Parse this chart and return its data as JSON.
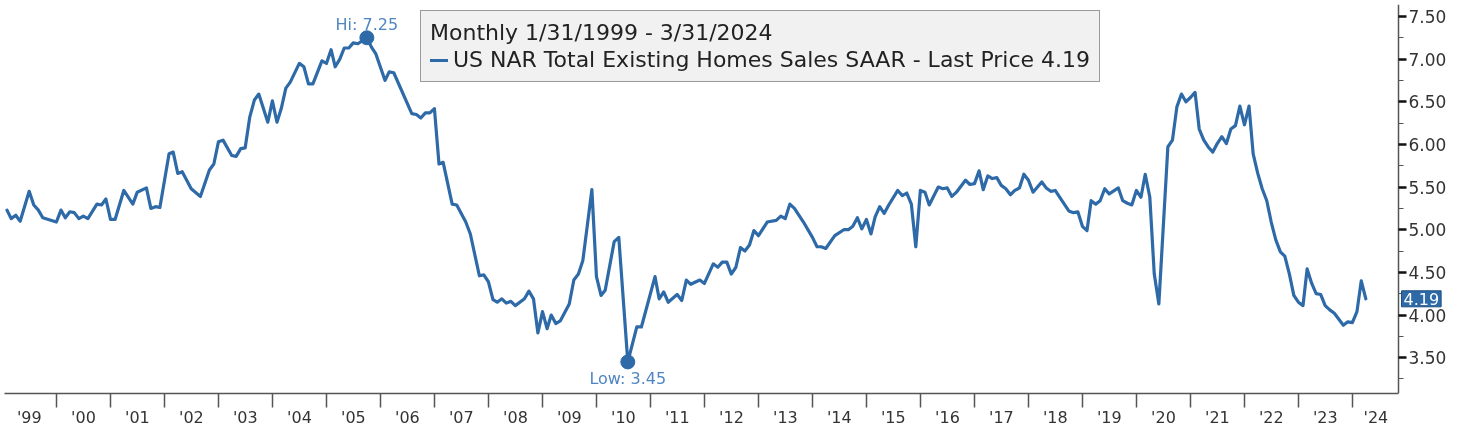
{
  "chart_data": {
    "type": "line",
    "legend_title": "Monthly 1/31/1999 - 3/31/2024",
    "x": [
      "1999-01-31",
      "1999-02-28",
      "1999-03-31",
      "1999-04-30",
      "1999-06-30",
      "1999-07-31",
      "1999-08-31",
      "1999-09-30",
      "1999-12-31",
      "2000-01-31",
      "2000-02-29",
      "2000-03-31",
      "2000-04-30",
      "2000-05-31",
      "2000-06-30",
      "2000-07-31",
      "2000-09-30",
      "2000-10-31",
      "2000-11-30",
      "2000-12-31",
      "2001-01-31",
      "2001-03-31",
      "2001-05-31",
      "2001-06-30",
      "2001-08-31",
      "2001-09-30",
      "2001-10-31",
      "2001-11-30",
      "2002-01-31",
      "2002-02-28",
      "2002-03-31",
      "2002-04-30",
      "2002-06-30",
      "2002-08-31",
      "2002-10-31",
      "2002-11-30",
      "2002-12-31",
      "2003-01-31",
      "2003-03-31",
      "2003-04-30",
      "2003-05-31",
      "2003-06-30",
      "2003-07-31",
      "2003-08-31",
      "2003-09-30",
      "2003-11-30",
      "2003-12-31",
      "2004-01-31",
      "2004-02-29",
      "2004-03-31",
      "2004-04-30",
      "2004-06-30",
      "2004-07-31",
      "2004-08-31",
      "2004-09-30",
      "2004-11-30",
      "2004-12-31",
      "2005-01-31",
      "2005-02-28",
      "2005-03-31",
      "2005-04-30",
      "2005-05-31",
      "2005-06-30",
      "2005-07-31",
      "2005-09-30",
      "2005-10-31",
      "2005-11-30",
      "2006-01-31",
      "2006-02-28",
      "2006-03-31",
      "2006-07-31",
      "2006-08-31",
      "2006-09-30",
      "2006-10-31",
      "2006-11-30",
      "2006-12-31",
      "2007-01-31",
      "2007-02-28",
      "2007-04-30",
      "2007-05-31",
      "2007-07-31",
      "2007-08-31",
      "2007-10-31",
      "2007-11-30",
      "2007-12-31",
      "2008-01-31",
      "2008-02-29",
      "2008-03-31",
      "2008-04-30",
      "2008-05-31",
      "2008-06-30",
      "2008-08-31",
      "2008-09-30",
      "2008-10-31",
      "2008-11-30",
      "2008-12-31",
      "2009-01-31",
      "2009-02-28",
      "2009-03-31",
      "2009-04-30",
      "2009-06-30",
      "2009-07-31",
      "2009-08-31",
      "2009-09-30",
      "2009-11-30",
      "2009-12-31",
      "2010-01-31",
      "2010-02-28",
      "2010-04-30",
      "2010-05-31",
      "2010-07-31",
      "2010-09-30",
      "2010-10-31",
      "2011-01-31",
      "2011-02-28",
      "2011-03-31",
      "2011-04-30",
      "2011-06-30",
      "2011-07-31",
      "2011-08-31",
      "2011-09-30",
      "2011-11-30",
      "2011-12-31",
      "2012-02-29",
      "2012-03-31",
      "2012-04-30",
      "2012-05-31",
      "2012-06-30",
      "2012-07-31",
      "2012-08-31",
      "2012-09-30",
      "2012-10-31",
      "2012-11-30",
      "2012-12-31",
      "2013-02-28",
      "2013-04-30",
      "2013-05-31",
      "2013-06-30",
      "2013-07-31",
      "2013-08-31",
      "2013-10-31",
      "2013-12-31",
      "2014-01-31",
      "2014-02-28",
      "2014-03-31",
      "2014-05-31",
      "2014-07-31",
      "2014-08-31",
      "2014-09-30",
      "2014-10-31",
      "2014-11-30",
      "2014-12-31",
      "2015-01-31",
      "2015-02-28",
      "2015-03-31",
      "2015-04-30",
      "2015-05-31",
      "2015-07-31",
      "2015-08-31",
      "2015-09-30",
      "2015-10-31",
      "2015-11-30",
      "2015-12-31",
      "2016-01-31",
      "2016-02-29",
      "2016-04-30",
      "2016-05-31",
      "2016-06-30",
      "2016-07-31",
      "2016-08-31",
      "2016-10-31",
      "2016-11-30",
      "2016-12-31",
      "2017-01-31",
      "2017-02-28",
      "2017-03-31",
      "2017-04-30",
      "2017-05-31",
      "2017-06-30",
      "2017-07-31",
      "2017-08-31",
      "2017-09-30",
      "2017-10-31",
      "2017-11-30",
      "2017-12-31",
      "2018-01-31",
      "2018-03-31",
      "2018-04-30",
      "2018-05-31",
      "2018-06-30",
      "2018-07-31",
      "2018-09-30",
      "2018-10-31",
      "2018-11-30",
      "2018-12-31",
      "2019-01-31",
      "2019-02-28",
      "2019-03-31",
      "2019-04-30",
      "2019-05-31",
      "2019-06-30",
      "2019-08-31",
      "2019-09-30",
      "2019-10-31",
      "2019-11-30",
      "2019-12-31",
      "2020-01-31",
      "2020-02-29",
      "2020-03-31",
      "2020-04-30",
      "2020-05-31",
      "2020-07-31",
      "2020-08-31",
      "2020-09-30",
      "2020-10-31",
      "2020-11-30",
      "2020-12-31",
      "2021-01-31",
      "2021-02-28",
      "2021-03-31",
      "2021-04-30",
      "2021-05-31",
      "2021-06-30",
      "2021-07-31",
      "2021-08-31",
      "2021-09-30",
      "2021-10-31",
      "2021-11-30",
      "2021-12-31",
      "2022-01-31",
      "2022-02-28",
      "2022-03-31",
      "2022-04-30",
      "2022-05-31",
      "2022-06-30",
      "2022-07-31",
      "2022-08-31",
      "2022-09-30",
      "2022-10-31",
      "2022-11-30",
      "2022-12-31",
      "2023-01-31",
      "2023-02-28",
      "2023-03-31",
      "2023-04-30",
      "2023-05-31",
      "2023-06-30",
      "2023-07-31",
      "2023-08-31",
      "2023-10-31",
      "2023-11-30",
      "2023-12-31",
      "2024-01-31",
      "2024-02-29",
      "2024-03-31"
    ],
    "series": [
      {
        "name": "US NAR Total Existing Homes Sales SAAR - Last Price 4.19",
        "color": "#2e6aa8",
        "values": [
          5.23,
          5.13,
          5.17,
          5.1,
          5.45,
          5.29,
          5.23,
          5.14,
          5.09,
          5.23,
          5.14,
          5.21,
          5.2,
          5.13,
          5.16,
          5.13,
          5.3,
          5.29,
          5.36,
          5.12,
          5.12,
          5.46,
          5.3,
          5.44,
          5.49,
          5.25,
          5.27,
          5.26,
          5.89,
          5.91,
          5.66,
          5.68,
          5.48,
          5.39,
          5.7,
          5.77,
          6.03,
          6.05,
          5.87,
          5.86,
          5.95,
          5.96,
          6.32,
          6.52,
          6.59,
          6.26,
          6.51,
          6.26,
          6.42,
          6.66,
          6.73,
          6.95,
          6.91,
          6.71,
          6.71,
          6.98,
          6.95,
          7.11,
          6.91,
          7.0,
          7.13,
          7.13,
          7.19,
          7.18,
          7.25,
          7.14,
          7.06,
          6.75,
          6.85,
          6.84,
          6.36,
          6.35,
          6.31,
          6.37,
          6.37,
          6.42,
          5.77,
          5.79,
          5.3,
          5.29,
          5.09,
          4.95,
          4.46,
          4.47,
          4.39,
          4.18,
          4.15,
          4.19,
          4.14,
          4.16,
          4.11,
          4.19,
          4.28,
          4.19,
          3.79,
          4.04,
          3.84,
          4.0,
          3.9,
          3.93,
          4.13,
          4.41,
          4.48,
          4.64,
          5.47,
          4.45,
          4.23,
          4.29,
          4.86,
          4.91,
          3.45,
          3.86,
          3.86,
          4.45,
          4.19,
          4.27,
          4.15,
          4.24,
          4.17,
          4.41,
          4.36,
          4.41,
          4.37,
          4.6,
          4.56,
          4.62,
          4.62,
          4.48,
          4.56,
          4.79,
          4.75,
          4.82,
          4.99,
          4.93,
          5.09,
          5.11,
          5.16,
          5.13,
          5.3,
          5.25,
          5.09,
          4.91,
          4.8,
          4.8,
          4.78,
          4.93,
          5.0,
          5.0,
          5.04,
          5.14,
          5.01,
          5.12,
          4.95,
          5.15,
          5.27,
          5.19,
          5.29,
          5.46,
          5.4,
          5.43,
          5.3,
          4.8,
          5.46,
          5.44,
          5.29,
          5.5,
          5.48,
          5.49,
          5.39,
          5.44,
          5.58,
          5.53,
          5.54,
          5.69,
          5.47,
          5.63,
          5.6,
          5.61,
          5.52,
          5.48,
          5.41,
          5.46,
          5.49,
          5.65,
          5.58,
          5.44,
          5.56,
          5.49,
          5.45,
          5.46,
          5.38,
          5.22,
          5.2,
          5.21,
          5.04,
          4.99,
          5.34,
          5.3,
          5.34,
          5.48,
          5.42,
          5.49,
          5.34,
          5.31,
          5.29,
          5.46,
          5.38,
          5.65,
          5.38,
          4.48,
          4.13,
          5.97,
          6.05,
          6.44,
          6.59,
          6.5,
          6.55,
          6.61,
          6.18,
          6.05,
          5.97,
          5.91,
          6.01,
          6.09,
          6.01,
          6.18,
          6.22,
          6.45,
          6.23,
          6.45,
          5.89,
          5.66,
          5.48,
          5.34,
          5.09,
          4.88,
          4.74,
          4.69,
          4.48,
          4.23,
          4.15,
          4.11,
          4.54,
          4.37,
          4.25,
          4.24,
          4.11,
          4.06,
          4.02,
          3.88,
          3.92,
          3.91,
          4.04,
          4.4,
          4.19
        ]
      }
    ],
    "xlim": [
      "1999-01-14",
      "2024-11-07"
    ],
    "ylim": [
      3.08,
      7.64
    ],
    "xticks": [
      {
        "value": "1999-07-01",
        "label": "'99"
      },
      {
        "value": "2000-07-01",
        "label": "'00"
      },
      {
        "value": "2001-07-01",
        "label": "'01"
      },
      {
        "value": "2002-07-01",
        "label": "'02"
      },
      {
        "value": "2003-07-01",
        "label": "'03"
      },
      {
        "value": "2004-07-01",
        "label": "'04"
      },
      {
        "value": "2005-07-01",
        "label": "'05"
      },
      {
        "value": "2006-07-01",
        "label": "'06"
      },
      {
        "value": "2007-07-01",
        "label": "'07"
      },
      {
        "value": "2008-07-01",
        "label": "'08"
      },
      {
        "value": "2009-07-01",
        "label": "'09"
      },
      {
        "value": "2010-07-01",
        "label": "'10"
      },
      {
        "value": "2011-07-01",
        "label": "'11"
      },
      {
        "value": "2012-07-01",
        "label": "'12"
      },
      {
        "value": "2013-07-01",
        "label": "'13"
      },
      {
        "value": "2014-07-01",
        "label": "'14"
      },
      {
        "value": "2015-07-01",
        "label": "'15"
      },
      {
        "value": "2016-07-01",
        "label": "'16"
      },
      {
        "value": "2017-07-01",
        "label": "'17"
      },
      {
        "value": "2018-07-01",
        "label": "'18"
      },
      {
        "value": "2019-07-01",
        "label": "'19"
      },
      {
        "value": "2020-07-01",
        "label": "'20"
      },
      {
        "value": "2021-07-01",
        "label": "'21"
      },
      {
        "value": "2022-07-01",
        "label": "'22"
      },
      {
        "value": "2023-07-01",
        "label": "'23"
      },
      {
        "value": "2024-06-07",
        "label": "'24"
      },
      {
        "value": "2000-01-01",
        "label": null
      },
      {
        "value": "2001-01-01",
        "label": null
      },
      {
        "value": "2002-01-01",
        "label": null
      },
      {
        "value": "2003-01-01",
        "label": null
      },
      {
        "value": "2004-01-01",
        "label": null
      },
      {
        "value": "2005-01-01",
        "label": null
      },
      {
        "value": "2006-01-01",
        "label": null
      },
      {
        "value": "2007-01-01",
        "label": null
      },
      {
        "value": "2008-01-01",
        "label": null
      },
      {
        "value": "2009-01-01",
        "label": null
      },
      {
        "value": "2010-01-01",
        "label": null
      },
      {
        "value": "2011-01-01",
        "label": null
      },
      {
        "value": "2012-01-01",
        "label": null
      },
      {
        "value": "2013-01-01",
        "label": null
      },
      {
        "value": "2014-01-01",
        "label": null
      },
      {
        "value": "2015-01-01",
        "label": null
      },
      {
        "value": "2016-01-01",
        "label": null
      },
      {
        "value": "2017-01-01",
        "label": null
      },
      {
        "value": "2018-01-01",
        "label": null
      },
      {
        "value": "2019-01-01",
        "label": null
      },
      {
        "value": "2020-01-01",
        "label": null
      },
      {
        "value": "2021-01-01",
        "label": null
      },
      {
        "value": "2022-01-01",
        "label": null
      },
      {
        "value": "2023-01-01",
        "label": null
      },
      {
        "value": "2024-01-01",
        "label": null
      }
    ],
    "yticks": [
      {
        "value": 3.5,
        "label": "3.50"
      },
      {
        "value": 4,
        "label": "4.00"
      },
      {
        "value": 4.5,
        "label": "4.50"
      },
      {
        "value": 5,
        "label": "5.00"
      },
      {
        "value": 5.5,
        "label": "5.50"
      },
      {
        "value": 6,
        "label": "6.00"
      },
      {
        "value": 6.5,
        "label": "6.50"
      },
      {
        "value": 7,
        "label": "7.00"
      },
      {
        "value": 7.5,
        "label": "7.50"
      },
      {
        "value": 3.25,
        "label": null
      },
      {
        "value": 3.75,
        "label": null
      },
      {
        "value": 4.25,
        "label": null
      },
      {
        "value": 4.75,
        "label": null
      },
      {
        "value": 5.25,
        "label": null
      },
      {
        "value": 5.75,
        "label": null
      },
      {
        "value": 6.25,
        "label": null
      },
      {
        "value": 6.75,
        "label": null
      },
      {
        "value": 7.25,
        "label": null
      }
    ],
    "annotations": [
      {
        "text": "Hi: 7.25",
        "x": "2005-09-30",
        "y": 7.25
      },
      {
        "text": "Low: 3.45",
        "x": "2010-07-31",
        "y": 3.45
      },
      {
        "text": "4.19",
        "x": "2024-03-31",
        "y": 4.19
      }
    ],
    "grid": false,
    "legend": "top",
    "line_style": "solid"
  }
}
